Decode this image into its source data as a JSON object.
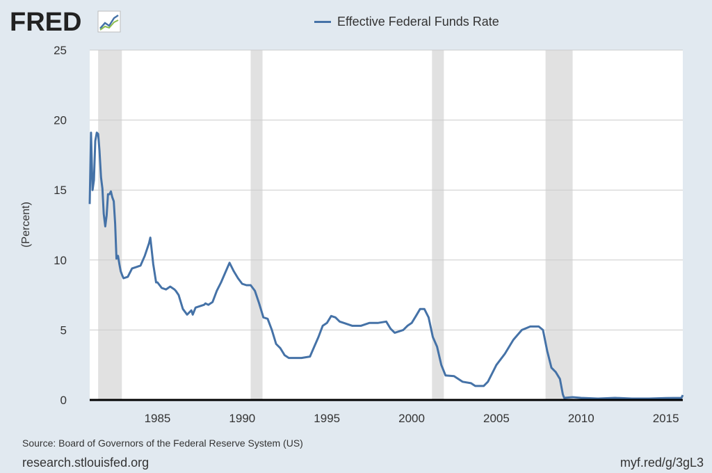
{
  "logo": {
    "text": "FRED"
  },
  "footer": {
    "source": "Source: Board of Governors of the Federal Reserve System (US)",
    "site": "research.stlouisfed.org",
    "short_url": "myf.red/g/3gL3"
  },
  "colors": {
    "background": "#e1e9f0",
    "plot_background": "#ffffff",
    "line": "#4572a7",
    "recession": "#e1e1e1",
    "grid": "#cccccc"
  },
  "chart_data": {
    "type": "line",
    "series": [
      {
        "name": "Effective Federal Funds Rate",
        "x": [
          1981.0,
          1981.08,
          1981.17,
          1981.25,
          1981.33,
          1981.42,
          1981.5,
          1981.58,
          1981.67,
          1981.75,
          1981.83,
          1981.92,
          1982.0,
          1982.08,
          1982.17,
          1982.25,
          1982.33,
          1982.42,
          1982.5,
          1982.58,
          1982.67,
          1982.75,
          1982.83,
          1982.92,
          1983.0,
          1983.25,
          1983.5,
          1983.75,
          1984.0,
          1984.25,
          1984.5,
          1984.58,
          1984.75,
          1984.92,
          1985.0,
          1985.25,
          1985.5,
          1985.75,
          1986.0,
          1986.08,
          1986.25,
          1986.5,
          1986.75,
          1987.0,
          1987.08,
          1987.25,
          1987.5,
          1987.75,
          1987.83,
          1988.0,
          1988.25,
          1988.5,
          1988.75,
          1989.0,
          1989.25,
          1989.5,
          1989.75,
          1990.0,
          1990.25,
          1990.5,
          1990.75,
          1991.0,
          1991.25,
          1991.5,
          1991.75,
          1992.0,
          1992.25,
          1992.5,
          1992.75,
          1993.0,
          1993.5,
          1994.0,
          1994.25,
          1994.5,
          1994.75,
          1995.0,
          1995.25,
          1995.5,
          1995.75,
          1996.0,
          1996.5,
          1997.0,
          1997.5,
          1998.0,
          1998.5,
          1998.75,
          1999.0,
          1999.5,
          1999.75,
          2000.0,
          2000.25,
          2000.5,
          2000.75,
          2001.0,
          2001.25,
          2001.5,
          2001.75,
          2002.0,
          2002.5,
          2003.0,
          2003.5,
          2003.75,
          2004.0,
          2004.25,
          2004.5,
          2004.75,
          2005.0,
          2005.5,
          2006.0,
          2006.5,
          2007.0,
          2007.5,
          2007.75,
          2008.0,
          2008.25,
          2008.5,
          2008.75,
          2008.92,
          2009.0,
          2009.5,
          2010.0,
          2011.0,
          2012.0,
          2013.0,
          2014.0,
          2015.0,
          2015.92,
          2016.0
        ],
        "values": [
          14.0,
          19.1,
          15.0,
          15.7,
          18.5,
          19.1,
          19.0,
          17.8,
          15.9,
          15.1,
          13.3,
          12.4,
          13.2,
          14.7,
          14.7,
          14.9,
          14.5,
          14.2,
          12.6,
          10.1,
          10.3,
          9.7,
          9.2,
          8.9,
          8.7,
          8.8,
          9.4,
          9.5,
          9.6,
          10.3,
          11.2,
          11.6,
          9.7,
          8.4,
          8.4,
          8.0,
          7.9,
          8.1,
          7.9,
          7.8,
          7.5,
          6.5,
          6.1,
          6.4,
          6.1,
          6.6,
          6.7,
          6.8,
          6.9,
          6.8,
          7.0,
          7.8,
          8.4,
          9.1,
          9.8,
          9.2,
          8.7,
          8.3,
          8.2,
          8.2,
          7.8,
          6.9,
          5.9,
          5.8,
          5.0,
          4.0,
          3.7,
          3.2,
          3.0,
          3.0,
          3.0,
          3.1,
          3.8,
          4.5,
          5.3,
          5.5,
          6.0,
          5.9,
          5.6,
          5.5,
          5.3,
          5.3,
          5.5,
          5.5,
          5.6,
          5.1,
          4.8,
          5.0,
          5.3,
          5.5,
          6.0,
          6.5,
          6.5,
          5.9,
          4.5,
          3.8,
          2.5,
          1.75,
          1.7,
          1.3,
          1.2,
          1.0,
          1.0,
          1.0,
          1.3,
          1.9,
          2.5,
          3.3,
          4.3,
          5.0,
          5.25,
          5.25,
          5.0,
          3.5,
          2.3,
          2.0,
          1.5,
          0.4,
          0.15,
          0.2,
          0.15,
          0.1,
          0.15,
          0.1,
          0.1,
          0.14,
          0.15,
          0.35
        ]
      }
    ],
    "title": "",
    "xlabel": "",
    "ylabel": "(Percent)",
    "xlim": [
      1981.0,
      2016.0
    ],
    "ylim": [
      0,
      25
    ],
    "x_ticks": [
      1985,
      1990,
      1995,
      2000,
      2005,
      2010,
      2015
    ],
    "y_ticks": [
      0,
      5,
      10,
      15,
      20,
      25
    ],
    "recessions": [
      [
        1981.5,
        1982.9
      ],
      [
        1990.5,
        1991.2
      ],
      [
        2001.2,
        2001.9
      ],
      [
        2007.9,
        2009.5
      ]
    ],
    "grid": "horizontal",
    "legend_position": "top-center"
  }
}
